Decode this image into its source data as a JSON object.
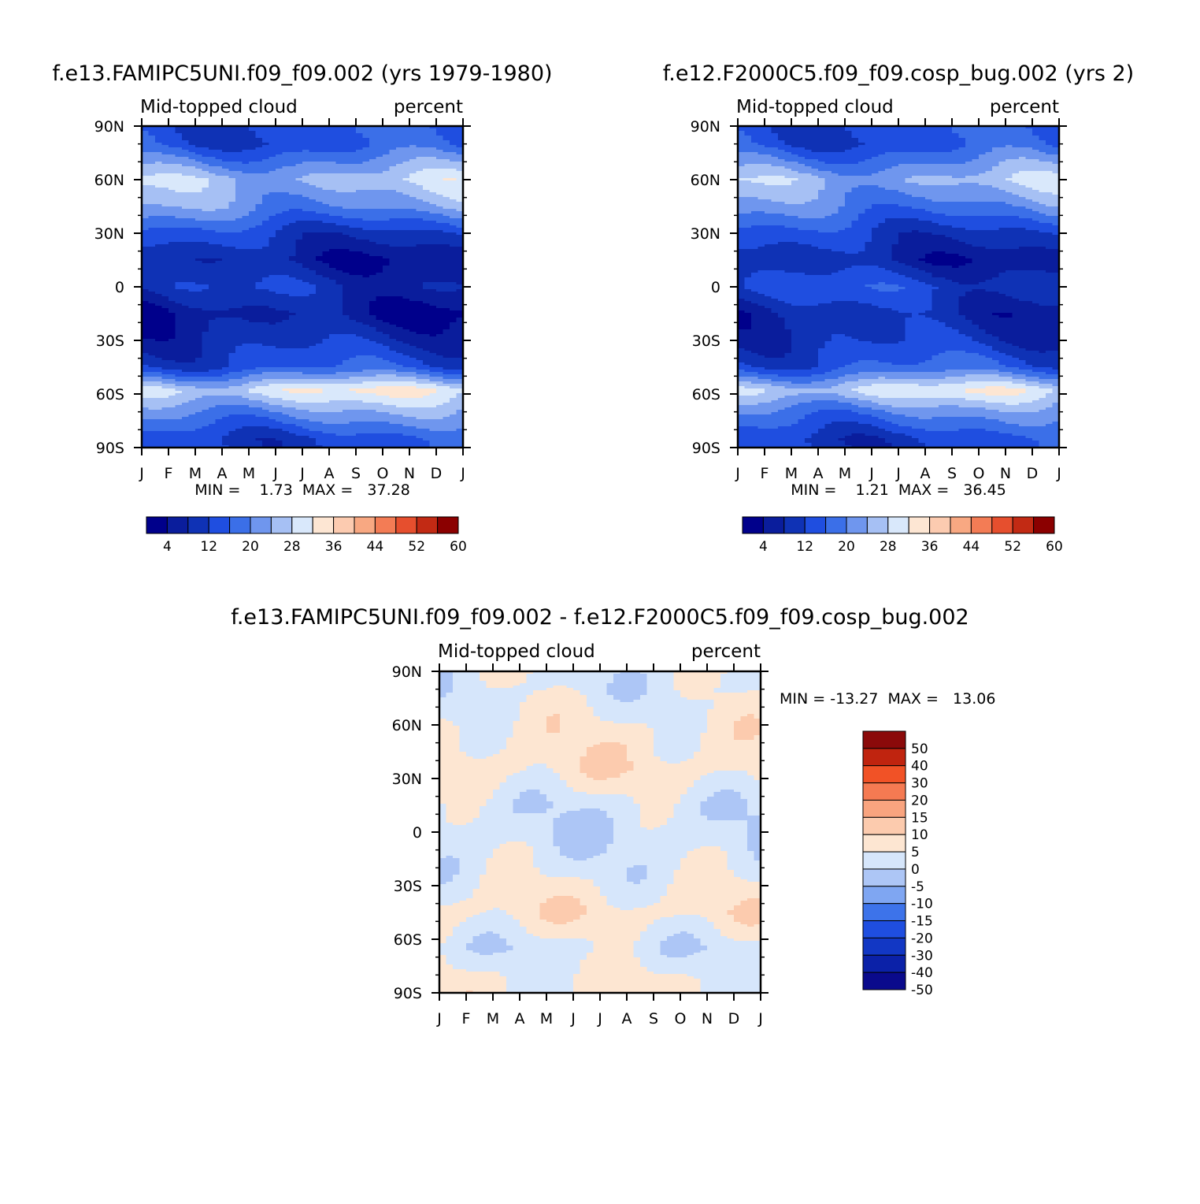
{
  "chart_data": [
    {
      "type": "heatmap",
      "title": "f.e13.FAMIPC5UNI.f09_f09.002 (yrs 1979-1980)",
      "left_label": "Mid-topped cloud",
      "right_label": "percent",
      "x_ticks": [
        "J",
        "F",
        "M",
        "A",
        "M",
        "J",
        "J",
        "A",
        "S",
        "O",
        "N",
        "D",
        "J"
      ],
      "y_ticks": [
        "90N",
        "60N",
        "30N",
        "0",
        "30S",
        "60S",
        "90S"
      ],
      "y_values": [
        90,
        60,
        30,
        0,
        -30,
        -60,
        -90
      ],
      "min": 1.73,
      "max": 37.28,
      "stats": "MIN =    1.73  MAX =   37.28",
      "levels": [
        4,
        8,
        12,
        16,
        20,
        24,
        28,
        32,
        36,
        40,
        44,
        48,
        52,
        56,
        60
      ],
      "colorbar_labels": [
        "4",
        "12",
        "20",
        "28",
        "36",
        "44",
        "52",
        "60"
      ],
      "lat_band_means": [
        {
          "lat": 80,
          "value": 14
        },
        {
          "lat": 60,
          "value": 27
        },
        {
          "lat": 45,
          "value": 22
        },
        {
          "lat": 30,
          "value": 12
        },
        {
          "lat": 15,
          "value": 6
        },
        {
          "lat": 0,
          "value": 10
        },
        {
          "lat": -15,
          "value": 5
        },
        {
          "lat": -30,
          "value": 9
        },
        {
          "lat": -45,
          "value": 14
        },
        {
          "lat": -58,
          "value": 31
        },
        {
          "lat": -70,
          "value": 22
        },
        {
          "lat": -85,
          "value": 13
        }
      ]
    },
    {
      "type": "heatmap",
      "title": "f.e12.F2000C5.f09_f09.cosp_bug.002 (yrs 2)",
      "left_label": "Mid-topped cloud",
      "right_label": "percent",
      "x_ticks": [
        "J",
        "F",
        "M",
        "A",
        "M",
        "J",
        "J",
        "A",
        "S",
        "O",
        "N",
        "D",
        "J"
      ],
      "y_ticks": [
        "90N",
        "60N",
        "30N",
        "0",
        "30S",
        "60S",
        "90S"
      ],
      "y_values": [
        90,
        60,
        30,
        0,
        -30,
        -60,
        -90
      ],
      "min": 1.21,
      "max": 36.45,
      "stats": "MIN =    1.21  MAX =   36.45",
      "levels": [
        4,
        8,
        12,
        16,
        20,
        24,
        28,
        32,
        36,
        40,
        44,
        48,
        52,
        56,
        60
      ],
      "colorbar_labels": [
        "4",
        "12",
        "20",
        "28",
        "36",
        "44",
        "52",
        "60"
      ],
      "lat_band_means": [
        {
          "lat": 80,
          "value": 14
        },
        {
          "lat": 60,
          "value": 26
        },
        {
          "lat": 45,
          "value": 20
        },
        {
          "lat": 30,
          "value": 12
        },
        {
          "lat": 15,
          "value": 7
        },
        {
          "lat": 0,
          "value": 13
        },
        {
          "lat": -15,
          "value": 8
        },
        {
          "lat": -30,
          "value": 10
        },
        {
          "lat": -45,
          "value": 15
        },
        {
          "lat": -58,
          "value": 30
        },
        {
          "lat": -70,
          "value": 20
        },
        {
          "lat": -85,
          "value": 12
        }
      ]
    },
    {
      "type": "heatmap",
      "title": "f.e13.FAMIPC5UNI.f09_f09.002 - f.e12.F2000C5.f09_f09.cosp_bug.002",
      "left_label": "Mid-topped cloud",
      "right_label": "percent",
      "x_ticks": [
        "J",
        "F",
        "M",
        "A",
        "M",
        "J",
        "J",
        "A",
        "S",
        "O",
        "N",
        "D",
        "J"
      ],
      "y_ticks": [
        "90N",
        "60N",
        "30N",
        "0",
        "30S",
        "60S",
        "90S"
      ],
      "y_values": [
        90,
        60,
        30,
        0,
        -30,
        -60,
        -90
      ],
      "min": -13.27,
      "max": 13.06,
      "stats": "MIN = -13.27  MAX =   13.06",
      "levels": [
        -50,
        -40,
        -30,
        -20,
        -15,
        -10,
        -5,
        0,
        5,
        10,
        15,
        20,
        30,
        40,
        50
      ],
      "colorbar_labels": [
        "50",
        "40",
        "30",
        "20",
        "15",
        "10",
        "5",
        "0",
        "-5",
        "-10",
        "-15",
        "-20",
        "-30",
        "-40",
        "-50"
      ],
      "lat_band_means": [
        {
          "lat": 80,
          "value": -2
        },
        {
          "lat": 55,
          "value": 2
        },
        {
          "lat": 35,
          "value": 3
        },
        {
          "lat": 15,
          "value": -3
        },
        {
          "lat": 0,
          "value": -4
        },
        {
          "lat": -20,
          "value": -2
        },
        {
          "lat": -45,
          "value": 3
        },
        {
          "lat": -65,
          "value": -3
        },
        {
          "lat": -85,
          "value": 1
        }
      ]
    }
  ],
  "colors": {
    "abs_palette": [
      "#00008b",
      "#0a1d9c",
      "#0f32b5",
      "#1f4ee0",
      "#3b6fe8",
      "#6f96ee",
      "#a6c0f4",
      "#d9e8fb",
      "#fde6d3",
      "#fccbb0",
      "#f8a882",
      "#f37c55",
      "#e64f2e",
      "#c22a14",
      "#8b0000"
    ],
    "diff_palette": [
      "#0a0a8c",
      "#0b21a8",
      "#1237c4",
      "#1f4ee0",
      "#3d73ea",
      "#7fa6f2",
      "#adc6f6",
      "#d6e6fb",
      "#fde6d2",
      "#fccbae",
      "#f9a47f",
      "#f57a52",
      "#f15226",
      "#c0240f",
      "#8b0a0a"
    ]
  }
}
